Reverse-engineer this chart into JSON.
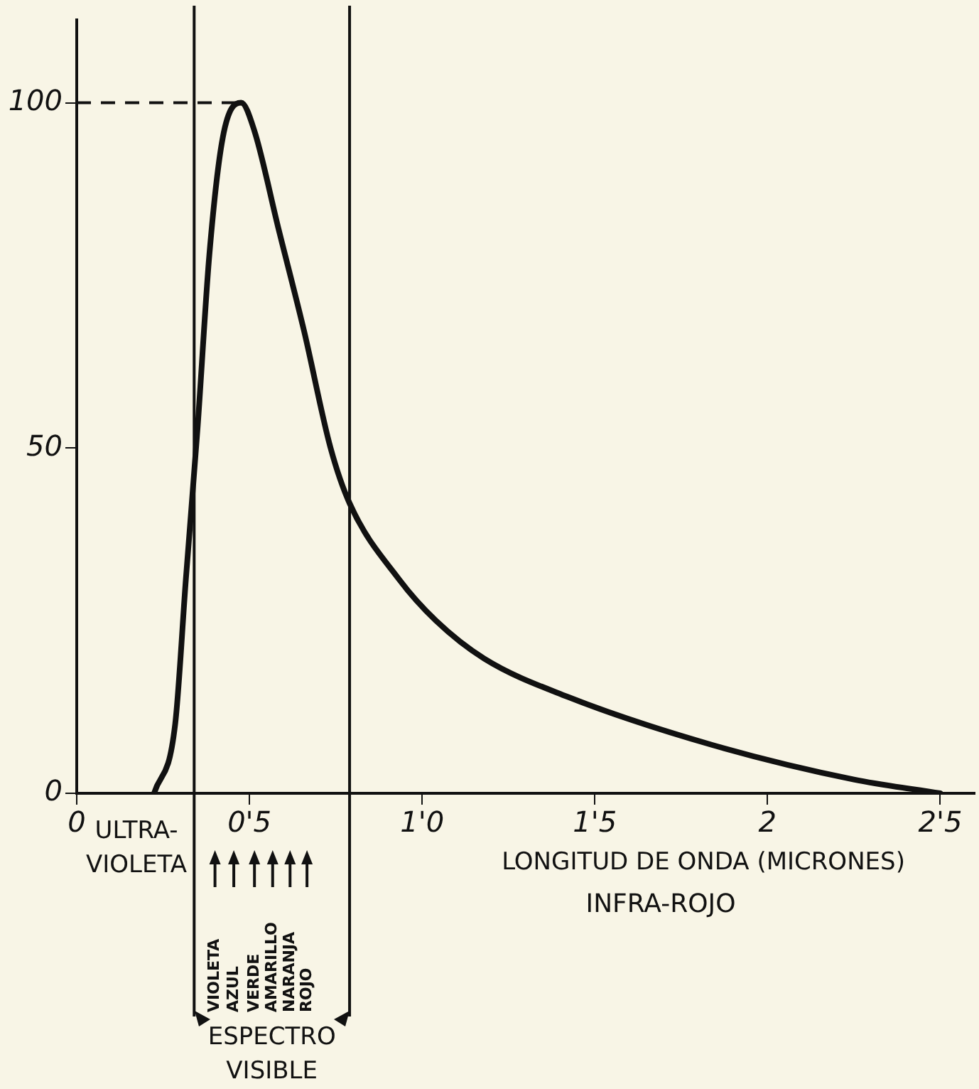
{
  "chart_data": {
    "type": "line",
    "xlabel": "LONGITUD DE ONDA (MICRONES)",
    "x": [
      0.224,
      0.285,
      0.316,
      0.35,
      0.384,
      0.423,
      0.476,
      0.514,
      0.583,
      0.658,
      0.735,
      0.79,
      0.933,
      1.04,
      1.18,
      1.42,
      1.84,
      2.25,
      2.5
    ],
    "series": [
      {
        "color": "#111111",
        "values": [
          0,
          10,
          31,
          53,
          78,
          95,
          100,
          96,
          82,
          67,
          50,
          42,
          31,
          25,
          19.5,
          14,
          7,
          2,
          0
        ]
      }
    ],
    "xlim": [
      0,
      2.6
    ],
    "xticks": [
      0,
      {
        "value": 0.5,
        "label": "0'5"
      },
      {
        "value": 1,
        "label": "1'0"
      },
      {
        "value": 1.5,
        "label": "1'5"
      },
      2,
      {
        "value": 2.5,
        "label": "2'5"
      }
    ],
    "ylim": [
      0,
      112
    ],
    "yticks": [
      0,
      50,
      100
    ],
    "grid": false,
    "legend": false,
    "marker": "none",
    "line_style": "solid",
    "ref_lines": [
      {
        "axis": "x",
        "value": 0.34,
        "label": null
      },
      {
        "axis": "x",
        "value": 0.79,
        "label": null
      },
      {
        "axis": "y",
        "value": 100,
        "label": null,
        "line_style": "dashed"
      }
    ],
    "annotations": [
      "ULTRA-\nVIOLETA",
      "INFRA-ROJO",
      "ESPECTRO\nVISIBLE",
      "VIOLETA",
      "AZUL",
      "VERDE",
      "AMARILLO",
      "NARANJA",
      "ROJO"
    ]
  }
}
